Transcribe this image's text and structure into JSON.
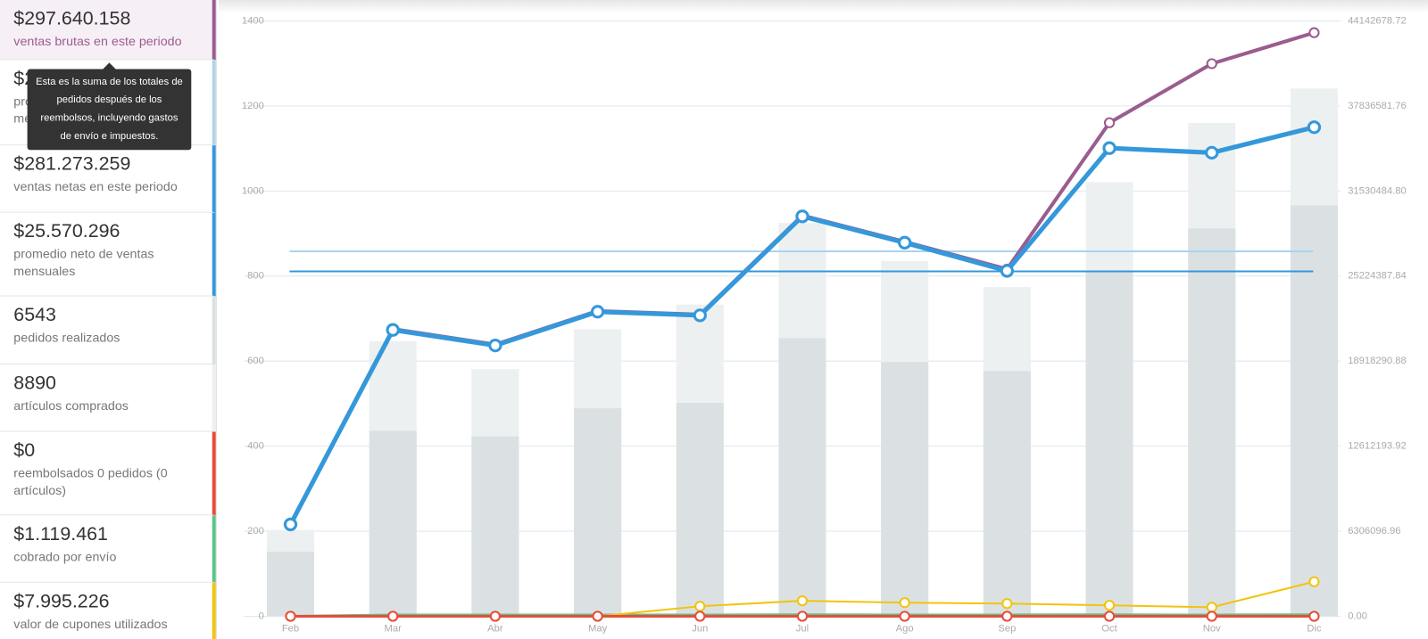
{
  "sidebar": {
    "items": [
      {
        "value": "$297.640.158",
        "label": [
          "ventas brutas en este periodo"
        ],
        "color": "#9b5c8f",
        "active": true
      },
      {
        "value": "$2",
        "label": [
          "pro",
          "me"
        ],
        "color": "#b1d4ea"
      },
      {
        "value": "$281.273.259",
        "label": [
          "ventas netas en este periodo"
        ],
        "color": "#3498db"
      },
      {
        "value": "$25.570.296",
        "label": [
          "promedio neto de ventas",
          "mensuales"
        ],
        "color": "#3498db"
      },
      {
        "value": "6543",
        "label": [
          "pedidos realizados"
        ],
        "color": "#dbe1e3"
      },
      {
        "value": "8890",
        "label": [
          "artículos comprados"
        ],
        "color": "#ecf0f1"
      },
      {
        "value": "$0",
        "label": [
          "reembolsados 0 pedidos (0",
          "artículos)"
        ],
        "color": "#e74c3c"
      },
      {
        "value": "$1.119.461",
        "label": [
          "cobrado por envío"
        ],
        "color": "#5cc488"
      },
      {
        "value": "$7.995.226",
        "label": [
          "valor de cupones utilizados"
        ],
        "color": "#f1c40f"
      }
    ]
  },
  "tooltip": {
    "lines": [
      "Esta es la suma de los totales de",
      "pedidos después de los",
      "reembolsos, incluyendo gastos",
      "de envío e impuestos."
    ]
  },
  "chart_data": {
    "type": "combo",
    "categories": [
      "Feb",
      "Mar",
      "Abr",
      "May",
      "Jun",
      "Jul",
      "Ago",
      "Sep",
      "Oct",
      "Nov",
      "Dic"
    ],
    "ylim": [
      0,
      1400
    ],
    "yticks": [
      0,
      200,
      400,
      600,
      800,
      1000,
      1200,
      1400
    ],
    "y2lim": [
      0,
      44142678.72
    ],
    "y2ticks": [
      {
        "value": 0,
        "label": "0.00"
      },
      6306096.96,
      12612193.92,
      18918290.88,
      25224387.84,
      {
        "value": 31530484.8,
        "label": "31530484.80"
      },
      37836581.76,
      44142678.72
    ],
    "grid": true,
    "reference_lines": [
      {
        "value": 27058196,
        "color": "#a8d3f0",
        "axis": "y2"
      },
      {
        "value": 25570296,
        "color": "#3498db",
        "axis": "y2"
      }
    ],
    "series": [
      {
        "type": "bar",
        "color": "#ecf0f1",
        "values": [
          203,
          647,
          581,
          675,
          733,
          925,
          835,
          774,
          1021,
          1160,
          1241
        ]
      },
      {
        "type": "bar",
        "color": "#dbe1e3",
        "values": [
          152,
          436,
          423,
          489,
          502,
          654,
          598,
          577,
          812,
          912,
          966
        ]
      },
      {
        "type": "line",
        "color": "#5cc488",
        "axis": "y2",
        "width": 3,
        "markers": false,
        "values": [
          0,
          100000,
          100000,
          100000,
          100000,
          110000,
          100000,
          100000,
          110000,
          100000,
          110000
        ]
      },
      {
        "type": "line",
        "color": "#f1c40f",
        "axis": "y2",
        "width": 2,
        "markers": true,
        "values": [
          0,
          0,
          0,
          0,
          740000,
          1150000,
          1010000,
          940000,
          810000,
          670000,
          2560000
        ]
      },
      {
        "type": "line",
        "color": "#e74c3c",
        "axis": "y2",
        "width": 3,
        "markers": true,
        "values": [
          0,
          0,
          0,
          0,
          0,
          0,
          0,
          0,
          0,
          0,
          0
        ]
      },
      {
        "type": "line",
        "color": "#9b5c8f",
        "axis": "y2",
        "width": 4,
        "markers": true,
        "values": [
          6810000,
          21300000,
          20150000,
          22640000,
          22370000,
          29720000,
          27770000,
          25740000,
          36590000,
          40970000,
          43270000
        ]
      },
      {
        "type": "line",
        "color": "#3498db",
        "axis": "y2",
        "width": 5,
        "markers": true,
        "values": [
          6810000,
          21230000,
          20080000,
          22580000,
          22310000,
          29650000,
          27700000,
          25610000,
          34710000,
          34370000,
          36260000
        ]
      }
    ]
  }
}
